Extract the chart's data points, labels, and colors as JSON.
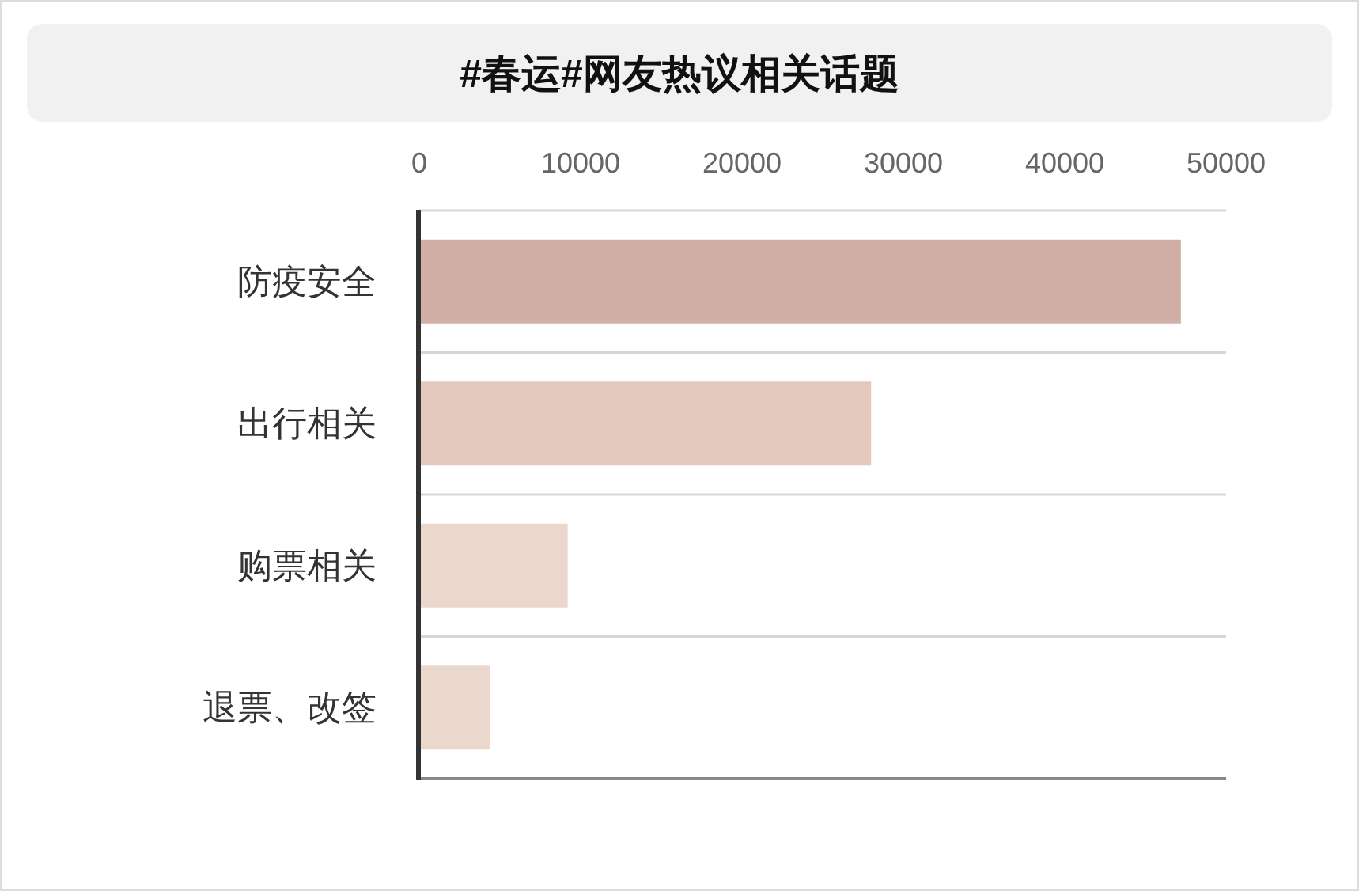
{
  "chart_data": {
    "type": "bar",
    "orientation": "horizontal",
    "title": "#春运#网友热议相关话题",
    "categories": [
      "防疫安全",
      "出行相关",
      "购票相关",
      "退票、改签"
    ],
    "values": [
      47200,
      28000,
      9200,
      4400
    ],
    "colors": [
      "#d1afa6",
      "#e2c9bc",
      "#ebd8cd",
      "#ebd8cd"
    ],
    "xlim": [
      0,
      50000
    ],
    "xticks": [
      0,
      10000,
      20000,
      30000,
      40000,
      50000
    ],
    "grid": "y"
  }
}
